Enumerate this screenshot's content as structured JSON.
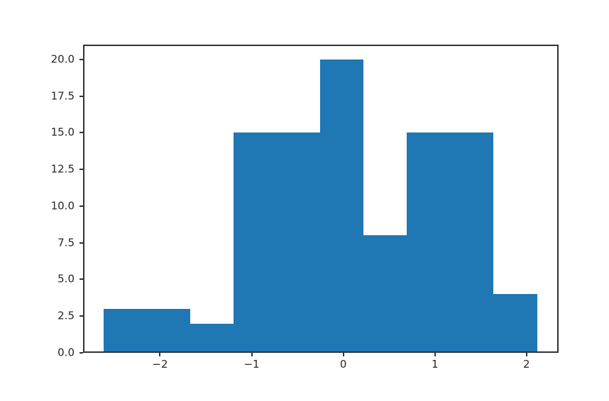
{
  "figure": {
    "background": "#ffffff",
    "bar_color": "#1f77b4",
    "spine_color": "#333333",
    "tick_color": "#333333",
    "text_color": "#262626"
  },
  "chart_data": {
    "type": "bar",
    "subtype": "histogram",
    "title": "",
    "xlabel": "",
    "ylabel": "",
    "bin_edges": [
      -2.617,
      -2.144,
      -1.671,
      -1.198,
      -0.725,
      -0.252,
      0.221,
      0.694,
      1.167,
      1.64,
      2.114
    ],
    "counts": [
      3,
      3,
      2,
      15,
      15,
      20,
      8,
      15,
      15,
      4
    ],
    "xlim": [
      -2.84,
      2.35
    ],
    "ylim": [
      0,
      21
    ],
    "xticks": {
      "values": [
        -2,
        -1,
        0,
        1,
        2
      ],
      "labels": [
        "−2",
        "−1",
        "0",
        "1",
        "2"
      ]
    },
    "yticks": {
      "values": [
        0,
        2.5,
        5,
        7.5,
        10,
        12.5,
        15,
        17.5,
        20
      ],
      "labels": [
        "0.0",
        "2.5",
        "5.0",
        "7.5",
        "10.0",
        "12.5",
        "15.0",
        "17.5",
        "20.0"
      ]
    },
    "grid": false,
    "legend": null
  }
}
